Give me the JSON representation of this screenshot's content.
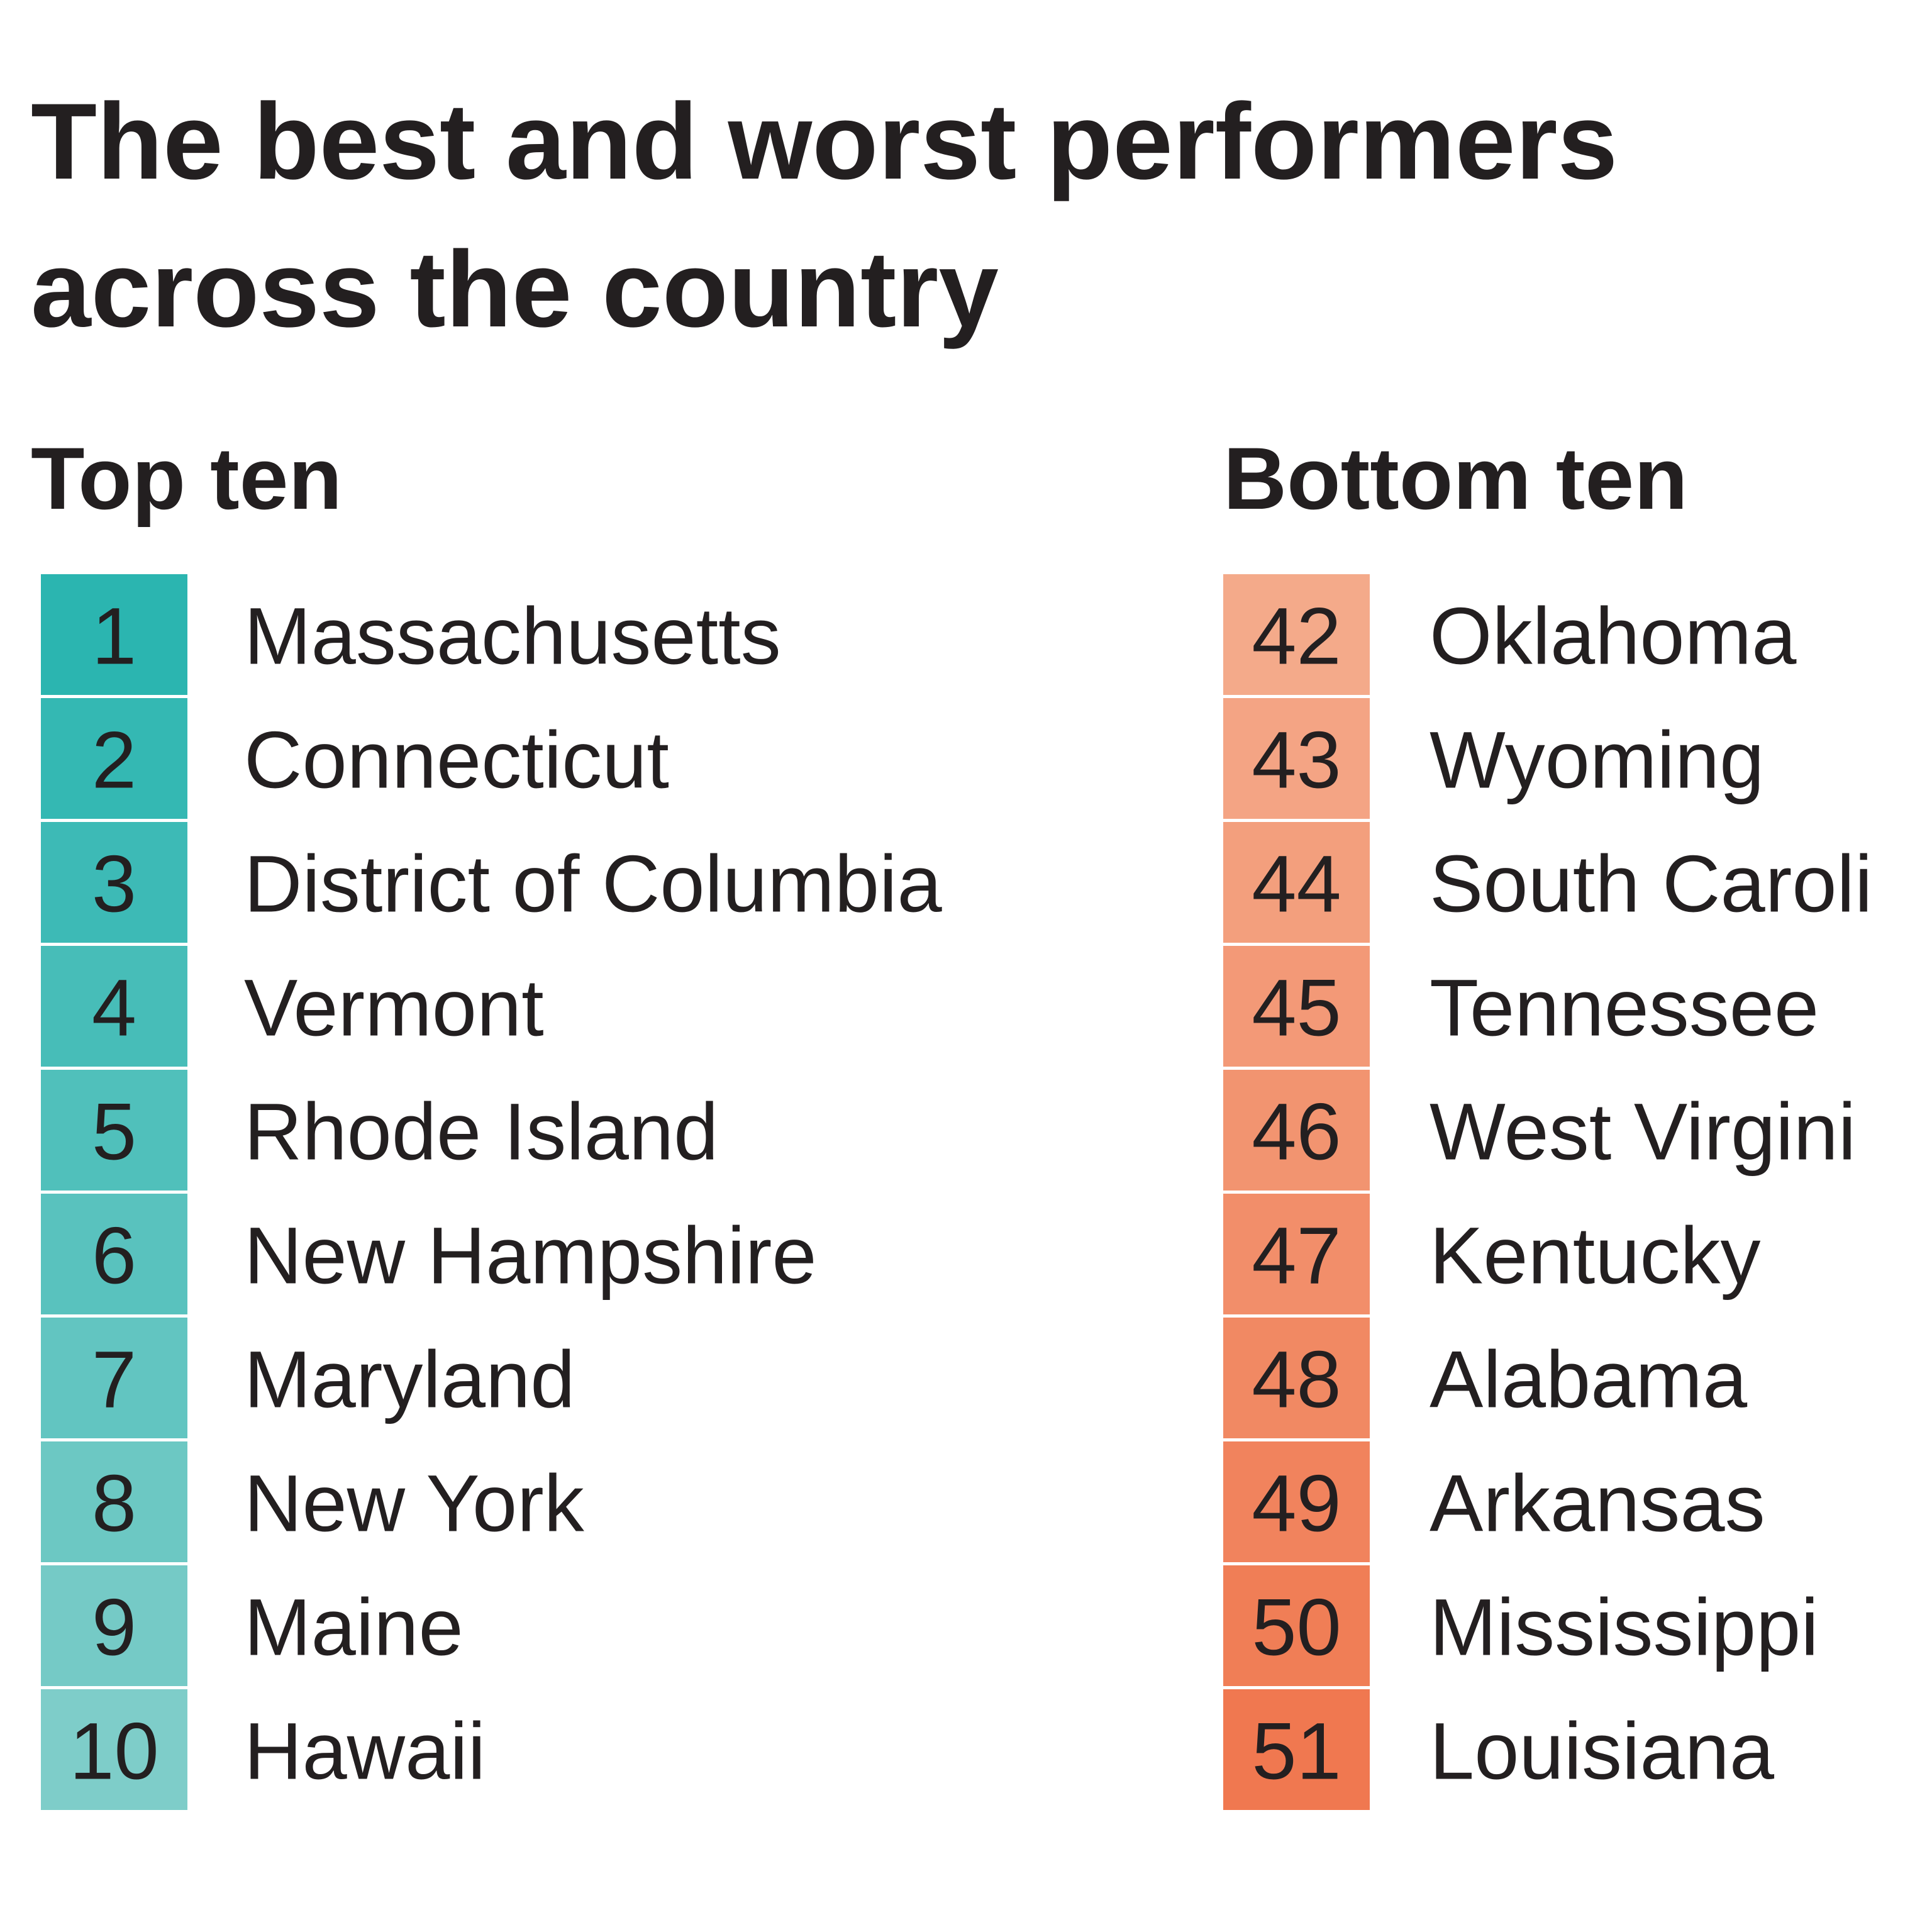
{
  "title": [
    "The best and worst performers",
    "across the country"
  ],
  "lists": [
    {
      "heading": "Top ten",
      "rows": [
        {
          "rank": 1,
          "name": "Massachusetts"
        },
        {
          "rank": 2,
          "name": "Connecticut"
        },
        {
          "rank": 3,
          "name": "District of Columbia"
        },
        {
          "rank": 4,
          "name": "Vermont"
        },
        {
          "rank": 5,
          "name": "Rhode Island"
        },
        {
          "rank": 6,
          "name": "New Hampshire"
        },
        {
          "rank": 7,
          "name": "Maryland"
        },
        {
          "rank": 8,
          "name": "New York"
        },
        {
          "rank": 9,
          "name": "Maine"
        },
        {
          "rank": 10,
          "name": "Hawaii"
        }
      ]
    },
    {
      "heading": "Bottom ten",
      "rows": [
        {
          "rank": 42,
          "name": "Oklahoma"
        },
        {
          "rank": 43,
          "name": "Wyoming"
        },
        {
          "rank": 44,
          "name": "South Caroli"
        },
        {
          "rank": 45,
          "name": "Tennessee"
        },
        {
          "rank": 46,
          "name": "West Virgini"
        },
        {
          "rank": 47,
          "name": "Kentucky"
        },
        {
          "rank": 48,
          "name": "Alabama"
        },
        {
          "rank": 49,
          "name": "Arkansas"
        },
        {
          "rank": 50,
          "name": "Mississippi"
        },
        {
          "rank": 51,
          "name": "Louisiana"
        }
      ]
    }
  ]
}
